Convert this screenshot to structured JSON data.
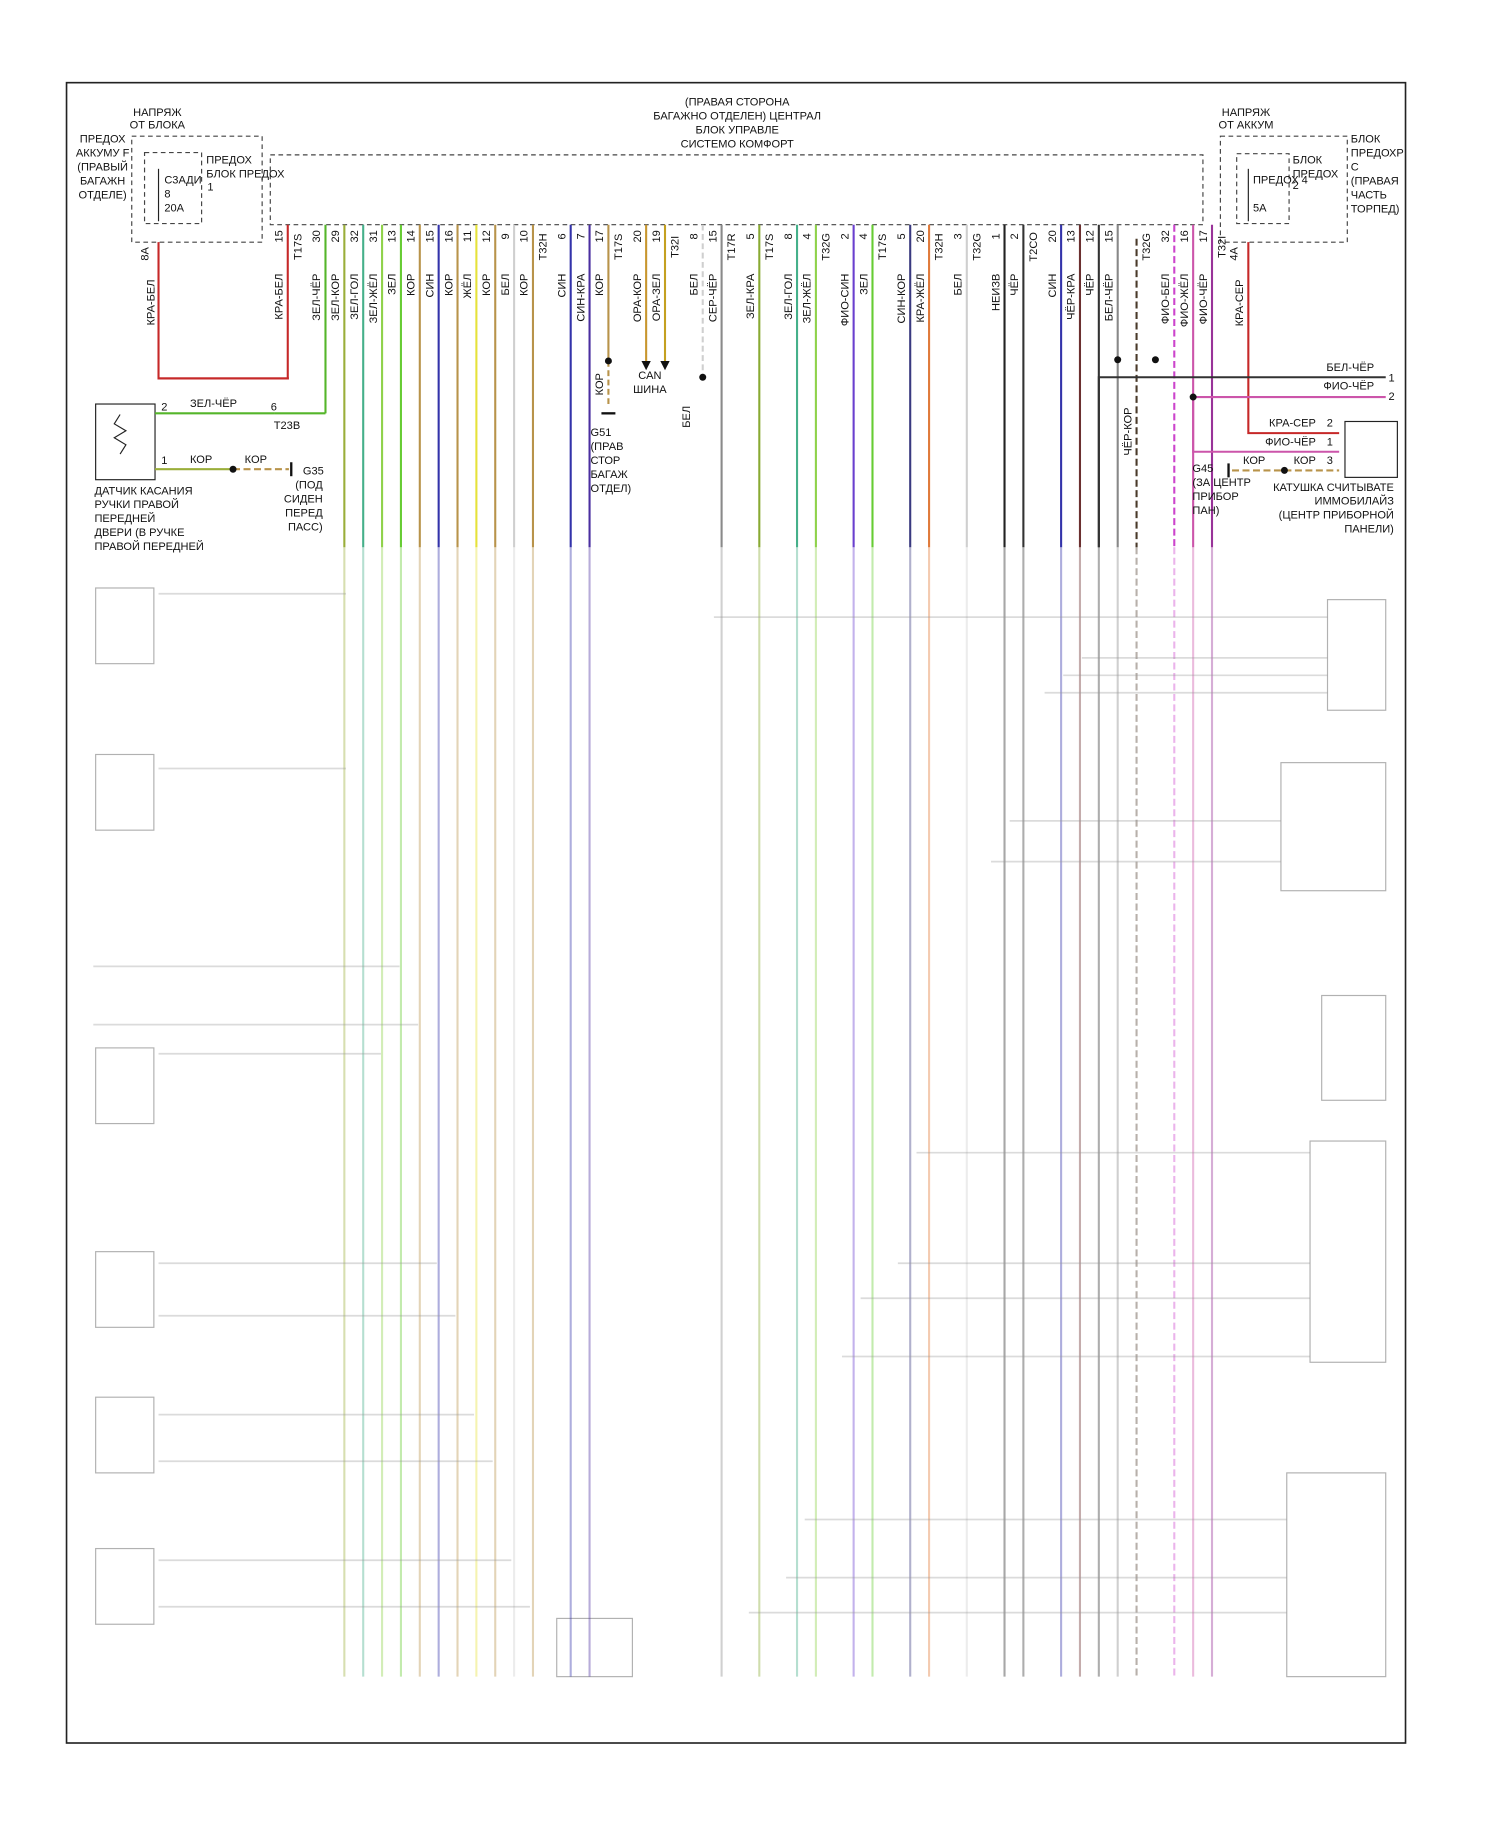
{
  "module": {
    "title": [
      "(ПРАВАЯ СТОРОНА",
      "БАГАЖНО ОТДЕЛЕН) ЦЕНТРАЛ",
      "БЛОК УПРАВЛЕ",
      "СИСТЕМО КОМФОРТ"
    ]
  },
  "left_supply": {
    "source": [
      "НАПРЯЖ",
      "ОТ БЛОКА"
    ],
    "fuse_block": [
      "ПРЕДОХ",
      "АККУМУ F",
      "(ПРАВЫЙ",
      "БАГАЖН",
      "ОТДЕЛЕ)"
    ],
    "fuse": [
      "C3АДИ",
      "8",
      "20A"
    ],
    "pin": "1",
    "block": [
      "ПРЕДОХ",
      "БЛОК ПРЕДОХ"
    ],
    "feed": {
      "pin": "8A",
      "wire": "КРА-БЕЛ",
      "color": "#c62828"
    }
  },
  "right_supply": {
    "source": [
      "НАПРЯЖ",
      "ОТ АККУМ"
    ],
    "block": [
      "БЛОК",
      "ПРЕДОХ"
    ],
    "fuse": [
      "ПРЕДОХ 4",
      "5A"
    ],
    "pin": "2",
    "location": [
      "БЛОК",
      "ПРЕДОХР",
      "С",
      "(ПРАВАЯ",
      "ЧАСТЬ",
      "ТОРПЕД)"
    ],
    "feed": {
      "pin": "4A",
      "wire": "КРА-СЕР",
      "color": "#c62828"
    }
  },
  "terminals": [
    {
      "pin": "15",
      "wire": "КРА-БЕЛ",
      "color": "#c62828"
    },
    {
      "connector": "T17S"
    },
    {
      "pin": "30",
      "wire": "ЗЕЛ-ЧЁР",
      "color": "#55b52a"
    },
    {
      "pin": "29",
      "wire": "ЗЕЛ-КОР",
      "color": "#9aae3a"
    },
    {
      "pin": "32",
      "wire": "ЗЕЛ-ГОЛ",
      "color": "#45b08a"
    },
    {
      "pin": "31",
      "wire": "ЗЕЛ-ЖЁЛ",
      "color": "#8fd24a"
    },
    {
      "pin": "13",
      "wire": "ЗЕЛ",
      "color": "#66cc33"
    },
    {
      "pin": "14",
      "wire": "КОР",
      "color": "#b8934a"
    },
    {
      "pin": "15",
      "wire": "СИН",
      "color": "#3333aa"
    },
    {
      "pin": "16",
      "wire": "КОР",
      "color": "#b8934a"
    },
    {
      "pin": "11",
      "wire": "ЖЁЛ",
      "color": "#e6e23a"
    },
    {
      "pin": "12",
      "wire": "КОР",
      "color": "#b8934a"
    },
    {
      "pin": "9",
      "wire": "БЕЛ",
      "color": "#cfcfcf"
    },
    {
      "pin": "10",
      "wire": "КОР",
      "color": "#b8934a"
    },
    {
      "connector": "T32H"
    },
    {
      "pin": "6",
      "wire": "СИН",
      "color": "#3333aa"
    },
    {
      "pin": "7",
      "wire": "СИН-КРА",
      "color": "#4a2fa0"
    },
    {
      "pin": "17",
      "wire": "КОР",
      "color": "#b8934a"
    },
    {
      "connector": "T17S"
    },
    {
      "pin": "20",
      "wire": "ОРА-КОР",
      "color": "#c8962e"
    },
    {
      "pin": "19",
      "wire": "ОРА-ЗЕЛ",
      "color": "#c4a020"
    },
    {
      "connector": "T32I"
    },
    {
      "pin": "8",
      "wire": "БЕЛ",
      "color": "#cfcfcf"
    },
    {
      "pin": "15",
      "wire": "СЕР-ЧЁР",
      "color": "#8a8a8a"
    },
    {
      "connector": "T17R"
    },
    {
      "pin": "5",
      "wire": "ЗЕЛ-КРА",
      "color": "#88aa33"
    },
    {
      "connector": "T17S"
    },
    {
      "pin": "8",
      "wire": "ЗЕЛ-ГОЛ",
      "color": "#45b08a"
    },
    {
      "pin": "4",
      "wire": "ЗЕЛ-ЖЁЛ",
      "color": "#8fd24a"
    },
    {
      "connector": "T32G"
    },
    {
      "pin": "2",
      "wire": "ФИО-СИН",
      "color": "#6a3fcf"
    },
    {
      "pin": "4",
      "wire": "ЗЕЛ",
      "color": "#66cc33"
    },
    {
      "connector": "T17S"
    },
    {
      "pin": "5",
      "wire": "СИН-КОР",
      "color": "#3a3a80"
    },
    {
      "pin": "20",
      "wire": "КРА-ЖЁЛ",
      "color": "#e07a3a"
    },
    {
      "connector": "T32H"
    },
    {
      "pin": "3",
      "wire": "БЕЛ",
      "color": "#cfcfcf"
    },
    {
      "connector": "T32G"
    },
    {
      "pin": "1",
      "wire": "НЕИЗВ",
      "color": "#222222"
    },
    {
      "pin": "2",
      "wire": "ЧЁР",
      "color": "#333333"
    },
    {
      "connector": "T2CO"
    },
    {
      "pin": "20",
      "wire": "СИН",
      "color": "#3333aa"
    },
    {
      "pin": "13",
      "wire": "ЧЁР-КРА",
      "color": "#6b3030"
    },
    {
      "pin": "12",
      "wire": "ЧЁР",
      "color": "#333333"
    },
    {
      "pin": "15",
      "wire": "БЕЛ-ЧЁР",
      "color": "#888888"
    },
    {
      "wire": "ЧЁР-КОР",
      "color": "#4a3a2a"
    },
    {
      "connector": "T32G"
    },
    {
      "pin": "32",
      "wire": "ФИО-БЕЛ",
      "color": "#cc44cc"
    },
    {
      "pin": "16",
      "wire": "ФИО-ЖЁЛ",
      "color": "#cc55aa"
    },
    {
      "pin": "17",
      "wire": "ФИО-ЧЁР",
      "color": "#993399"
    },
    {
      "connector": "T32I"
    }
  ],
  "can": [
    "CAN",
    "ШИНА"
  ],
  "g51": {
    "wire": "КОР",
    "label": [
      "G51",
      "(ПРАВ",
      "СТОР",
      "БАГАЖ",
      "ОТДЕЛ)"
    ]
  },
  "white_branch": "БЕЛ",
  "door_sensor": {
    "pins": [
      "2",
      "1"
    ],
    "wires": [
      "ЗЕЛ-ЧЁР",
      "КОР",
      "КОР"
    ],
    "connector": [
      "6",
      "T23B"
    ],
    "ground": [
      "G35",
      "(ПОД",
      "СИДЕН",
      "ПЕРЕД",
      "ПАСС)"
    ],
    "label": [
      "ДАТЧИК КАСАНИЯ",
      "РУЧКИ ПРАВОЙ",
      "ПЕРЕДНЕЙ",
      "ДВЕРИ (В РУЧКЕ",
      "ПРАВОЙ ПЕРЕДНЕЙ"
    ]
  },
  "immobilizer": {
    "branch": [
      {
        "wire": "БЕЛ-ЧЁР",
        "pin": "1"
      },
      {
        "wire": "ФИО-ЧЁР",
        "pin": "2"
      }
    ],
    "pins": [
      {
        "wire": "КРА-СЕР",
        "pin": "2"
      },
      {
        "wire": "ФИО-ЧЁР",
        "pin": "1"
      },
      {
        "wire": "КОР",
        "pin": "3"
      }
    ],
    "ground_wire": "КОР",
    "ground": [
      "G45",
      "(ЗА ЦЕНТР",
      "ПРИБОР",
      "ПАН)"
    ],
    "label": [
      "КАТУШКА СЧИТЫВАТЕ",
      "ИММОБИЛАЙЗ",
      "(ЦЕНТР ПРИБОРНОЙ",
      "ПАНЕЛИ)"
    ]
  }
}
